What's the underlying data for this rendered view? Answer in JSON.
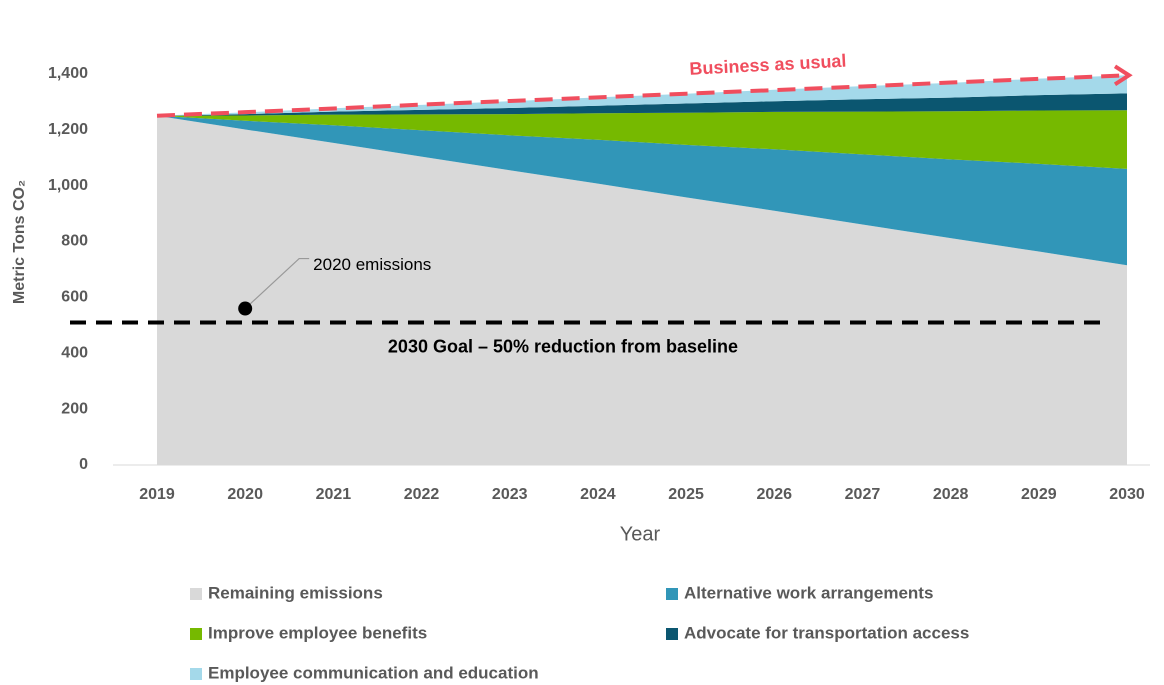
{
  "chart_data": {
    "type": "stacked_area",
    "y_label": "Metric Tons CO₂",
    "x_label": "Year",
    "categories": [
      "2019",
      "2020",
      "2021",
      "2022",
      "2023",
      "2024",
      "2025",
      "2026",
      "2027",
      "2028",
      "2029",
      "2030"
    ],
    "series": [
      {
        "name": "Remaining emissions",
        "color": "#d9d9d9",
        "values": [
          1250,
          1201,
          1153,
          1104,
          1055,
          1007,
          958,
          910,
          861,
          812,
          764,
          715
        ]
      },
      {
        "name": "Alternative work arrangements",
        "color": "#3196b8",
        "values": [
          0,
          31,
          63,
          94,
          125,
          157,
          188,
          220,
          251,
          282,
          314,
          345
        ]
      },
      {
        "name": "Improve employee benefits",
        "color": "#76b900",
        "values": [
          0,
          19,
          38,
          57,
          76,
          95,
          115,
          134,
          153,
          172,
          191,
          210
        ]
      },
      {
        "name": "Advocate for transportation access",
        "color": "#0b5670",
        "values": [
          0,
          5,
          11,
          16,
          22,
          27,
          33,
          38,
          44,
          49,
          55,
          60
        ]
      },
      {
        "name": "Employee communication and education",
        "color": "#a4d9ea",
        "values": [
          0,
          6,
          12,
          18,
          24,
          30,
          35,
          41,
          47,
          53,
          59,
          65
        ]
      }
    ],
    "business_as_usual": {
      "label": "Business as usual",
      "color": "#f04e5e",
      "values": [
        1250,
        1263,
        1276,
        1290,
        1303,
        1316,
        1329,
        1342,
        1355,
        1369,
        1382,
        1395
      ]
    },
    "goal": {
      "label": "2030 Goal – 50% reduction from baseline",
      "value": 510
    },
    "point_2020": {
      "label": "2020 emissions",
      "category": 1,
      "value": 560
    },
    "ylim": [
      0,
      1600
    ],
    "yticks": [
      0,
      200,
      400,
      600,
      800,
      1000,
      1200,
      1400,
      {
        "value": 1000,
        "label": "1,000"
      }
    ],
    "legend": "bottom"
  }
}
